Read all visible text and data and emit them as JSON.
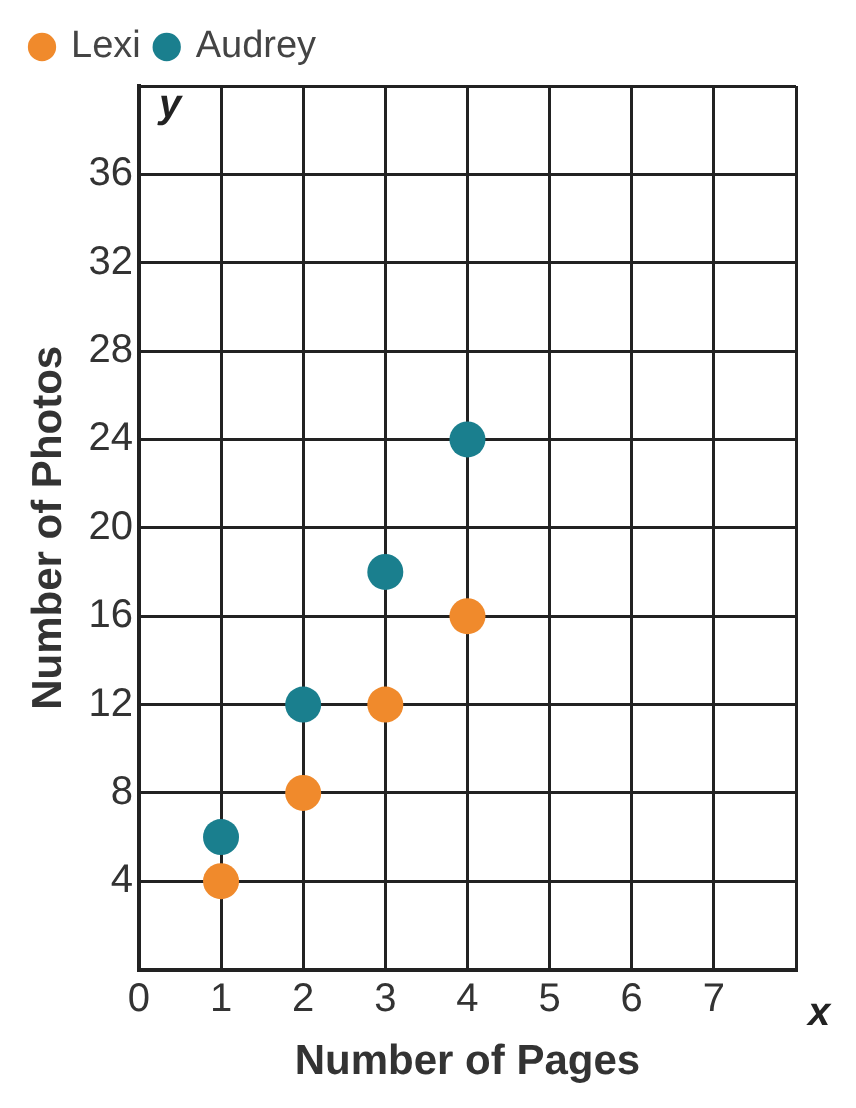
{
  "chart_data": {
    "type": "scatter",
    "xlabel": "Number of Pages",
    "ylabel": "Number of Photos",
    "x": [
      1,
      2,
      3,
      4
    ],
    "series": [
      {
        "name": "Lexi",
        "color": "#f08a2c",
        "values": [
          4,
          8,
          12,
          16
        ]
      },
      {
        "name": "Audrey",
        "color": "#1a7f8e",
        "values": [
          6,
          12,
          18,
          24
        ]
      }
    ],
    "xlim": [
      0,
      8
    ],
    "xticks": [
      0,
      1,
      2,
      3,
      4,
      5,
      6,
      7,
      {
        "value": 8,
        "label": null
      }
    ],
    "ylim": [
      0,
      40
    ],
    "yticks": [
      {
        "value": 0,
        "label": null
      },
      4,
      8,
      12,
      16,
      20,
      24,
      28,
      32,
      36,
      {
        "value": 40,
        "label": null
      }
    ],
    "annotations": [
      "x",
      "y"
    ],
    "grid": true,
    "legend": "top left",
    "marker": "circle"
  }
}
